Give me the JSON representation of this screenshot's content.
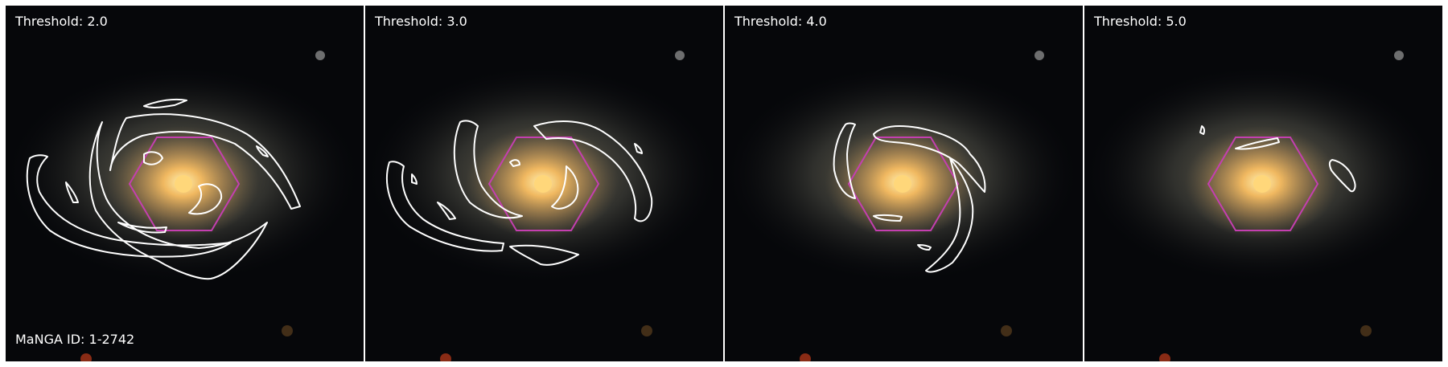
{
  "panels": [
    {
      "threshold_label": "Threshold: 2.0"
    },
    {
      "threshold_label": "Threshold: 3.0"
    },
    {
      "threshold_label": "Threshold: 4.0"
    },
    {
      "threshold_label": "Threshold: 5.0"
    }
  ],
  "galaxy_id_label": "MaNGA ID: 1-2742",
  "colors": {
    "contour": "#ffffff",
    "hexagon": "#c43fb0",
    "background": "#06070a",
    "core": "#ffcf6a"
  }
}
